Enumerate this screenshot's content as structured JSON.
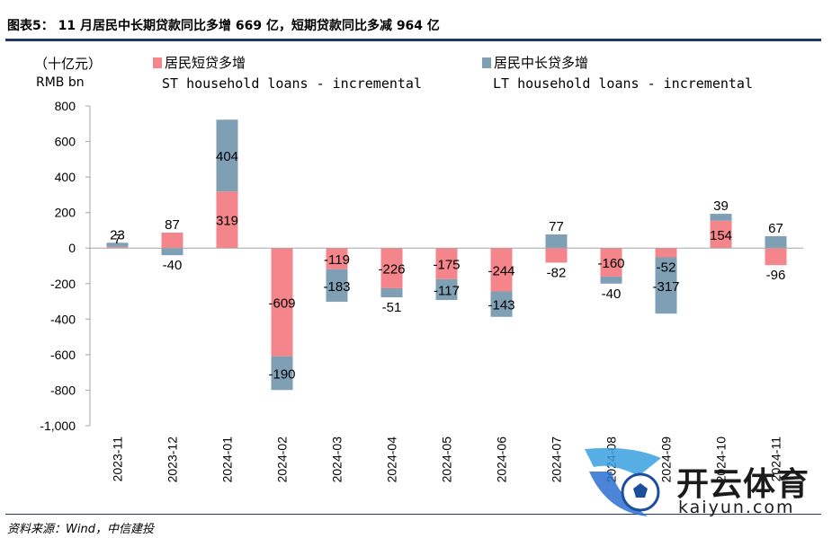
{
  "header": {
    "title": "图表5： 11 月居民中长期贷款同比多增 669 亿，短期贷款同比多减 964 亿"
  },
  "unit": {
    "cn": "（十亿元）",
    "en": "RMB bn"
  },
  "footer": {
    "source": "资料来源：Wind，中信建投"
  },
  "watermark": {
    "cn": "开云体育",
    "en": "kaiyun.com"
  },
  "colors": {
    "st": "#f4858a",
    "lt": "#7f9fb5",
    "axis": "#a6a6a6",
    "header_rule": "#1f3864"
  },
  "chart_data": {
    "type": "bar",
    "stacked": true,
    "title": "11 月居民中长期贷款同比多增 669 亿，短期贷款同比多减 964 亿",
    "ylabel": "（十亿元） RMB bn",
    "ylim": [
      -1000,
      800
    ],
    "yticks": [
      800,
      600,
      400,
      200,
      0,
      -200,
      -400,
      -600,
      -800,
      -1000
    ],
    "ytick_labels": [
      "800",
      "600",
      "400",
      "200",
      "0",
      "-200",
      "-400",
      "-600",
      "-800",
      "-1,000"
    ],
    "categories": [
      "2023-11",
      "2023-12",
      "2024-01",
      "2024-02",
      "2024-03",
      "2024-04",
      "2024-05",
      "2024-06",
      "2024-07",
      "2024-08",
      "2024-09",
      "2024-10",
      "2024-11"
    ],
    "series": [
      {
        "name": "居民短贷多增",
        "name_en": "ST household loans - incremental",
        "values": [
          7,
          87,
          319,
          -609,
          -119,
          -226,
          -175,
          -244,
          -82,
          -160,
          -52,
          154,
          -96
        ]
      },
      {
        "name": "居民中长贷多增",
        "name_en": "LT household loans - incremental",
        "values": [
          23,
          -40,
          404,
          -190,
          -183,
          -51,
          -117,
          -143,
          77,
          -40,
          -317,
          39,
          67
        ]
      }
    ]
  }
}
